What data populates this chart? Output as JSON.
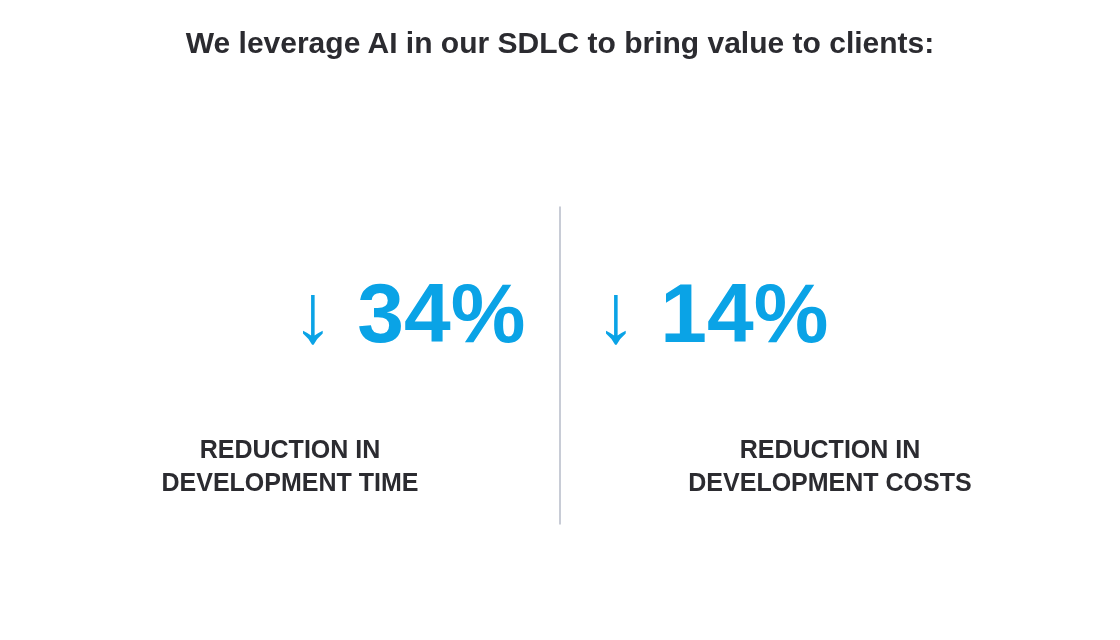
{
  "chart_data": {
    "type": "other",
    "title": "We leverage AI in our SDLC to bring value to clients:",
    "categories": [
      "REDUCTION IN\nDEVELOPMENT TIME",
      "REDUCTION IN\nDEVELOPMENT COSTS"
    ],
    "values": [
      34,
      14
    ],
    "value_labels": [
      "↓ 34%",
      "↓ 14%"
    ],
    "color": "#0aa3e6"
  }
}
